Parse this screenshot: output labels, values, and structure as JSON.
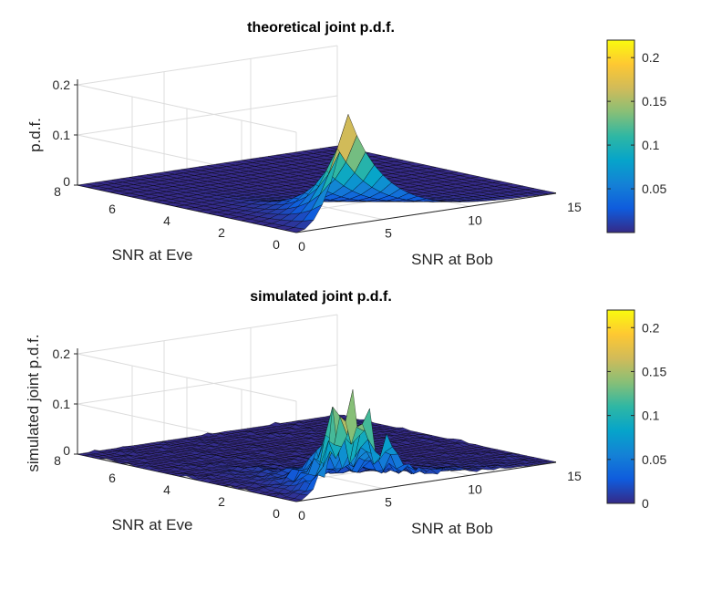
{
  "chart_data": [
    {
      "type": "surface",
      "title": "theoretical joint p.d.f.",
      "xlabel": "SNR at Bob",
      "ylabel": "SNR at Eve",
      "zlabel": "p.d.f.",
      "xlim": [
        0,
        15
      ],
      "ylim": [
        0,
        8
      ],
      "zlim": [
        0,
        0.2
      ],
      "x_ticks": [
        "0",
        "5",
        "10",
        "15"
      ],
      "y_ticks": [
        "0",
        "2",
        "4",
        "6",
        "8"
      ],
      "z_ticks": [
        "0",
        "0.1",
        "0.2"
      ],
      "peak": {
        "x": 3,
        "y": 0,
        "z": 0.22
      },
      "colormap": "parula",
      "colorbar": {
        "range": [
          0,
          0.22
        ],
        "ticks": [
          "0.05",
          "0.1",
          "0.15",
          "0.2"
        ]
      },
      "grid": true
    },
    {
      "type": "surface",
      "title": "simulated joint p.d.f.",
      "xlabel": "SNR at Bob",
      "ylabel": "SNR at Eve",
      "zlabel": "simulated joint p.d.f.",
      "xlim": [
        0,
        15
      ],
      "ylim": [
        0,
        8
      ],
      "zlim": [
        0,
        0.2
      ],
      "x_ticks": [
        "0",
        "5",
        "10",
        "15"
      ],
      "y_ticks": [
        "0",
        "2",
        "4",
        "6",
        "8"
      ],
      "z_ticks": [
        "0",
        "0.1",
        "0.2"
      ],
      "peak": {
        "x": 3,
        "y": 0,
        "z": 0.22
      },
      "colormap": "parula",
      "colorbar": {
        "range": [
          0,
          0.22
        ],
        "ticks": [
          "0",
          "0.05",
          "0.1",
          "0.15",
          "0.2"
        ]
      },
      "grid": true
    }
  ],
  "colors": {
    "parula": [
      "#352a87",
      "#0f5cdd",
      "#1481d6",
      "#06a4ca",
      "#2eb7a4",
      "#87bf77",
      "#d1bb59",
      "#fec832",
      "#f9fb0e"
    ],
    "mesh_edge": "#000000"
  }
}
